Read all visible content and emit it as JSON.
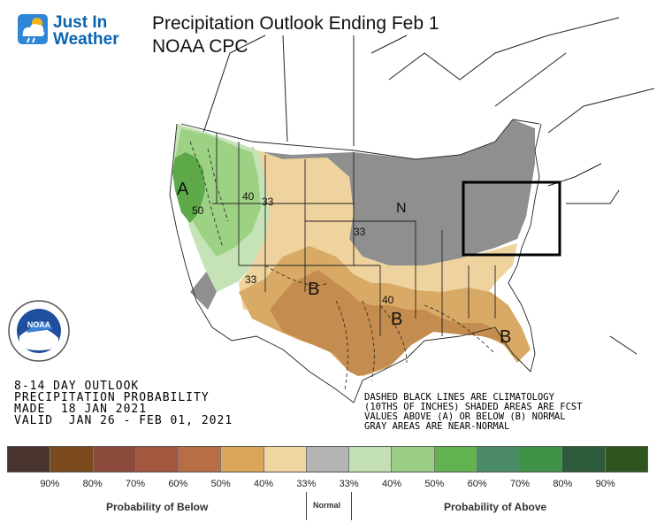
{
  "header": {
    "logo_line1": "Just In",
    "logo_line2": "Weather",
    "title_line1": "Precipitation Outlook Ending Feb 1",
    "title_line2": "NOAA CPC"
  },
  "seal_text": "NOAA",
  "map_labels": {
    "a_label": "A",
    "n_label": "N",
    "b_label_1": "B",
    "b_label_2": "B",
    "b_label_3": "B",
    "c_40": "40",
    "c_50": "50",
    "c_33a": "33",
    "c_33b": "33",
    "c_33c": "33",
    "c_40b": "40"
  },
  "outlook_info": {
    "line1": "8-14 DAY OUTLOOK",
    "line2": "PRECIPITATION PROBABILITY",
    "line3": "MADE  18 JAN 2021",
    "line4": "VALID  JAN 26 - FEB 01, 2021"
  },
  "note": {
    "line1": "DASHED BLACK LINES ARE CLIMATOLOGY",
    "line2": "(10THS OF INCHES) SHADED AREAS ARE FCST",
    "line3": "VALUES ABOVE (A) OR BELOW (B) NORMAL",
    "line4": "GRAY AREAS ARE NEAR-NORMAL"
  },
  "legend": {
    "colors": [
      "#4a3430",
      "#7a4a1c",
      "#8c4a3c",
      "#a3573f",
      "#b86e44",
      "#d9a65a",
      "#efd5a0",
      "#b4b4b4",
      "#c2e0b4",
      "#9ccf86",
      "#63b252",
      "#4a8a64",
      "#3f9248",
      "#2c5c3a",
      "#30541e"
    ],
    "percents": [
      "90%",
      "80%",
      "70%",
      "60%",
      "50%",
      "40%",
      "33%",
      "33%",
      "40%",
      "50%",
      "60%",
      "70%",
      "80%",
      "90%"
    ],
    "below_label": "Probability of Below",
    "normal_label": "Normal",
    "above_label": "Probability of Above"
  },
  "colors": {
    "gray_near_normal": "#8f8f8f",
    "tan_33": "#eed39e",
    "tan_40": "#d8aa65",
    "brown_50": "#c48c4e",
    "green_33": "#c5e3b6",
    "green_40": "#9dd184",
    "green_50": "#5da94a",
    "highlight_box": "#000000"
  }
}
